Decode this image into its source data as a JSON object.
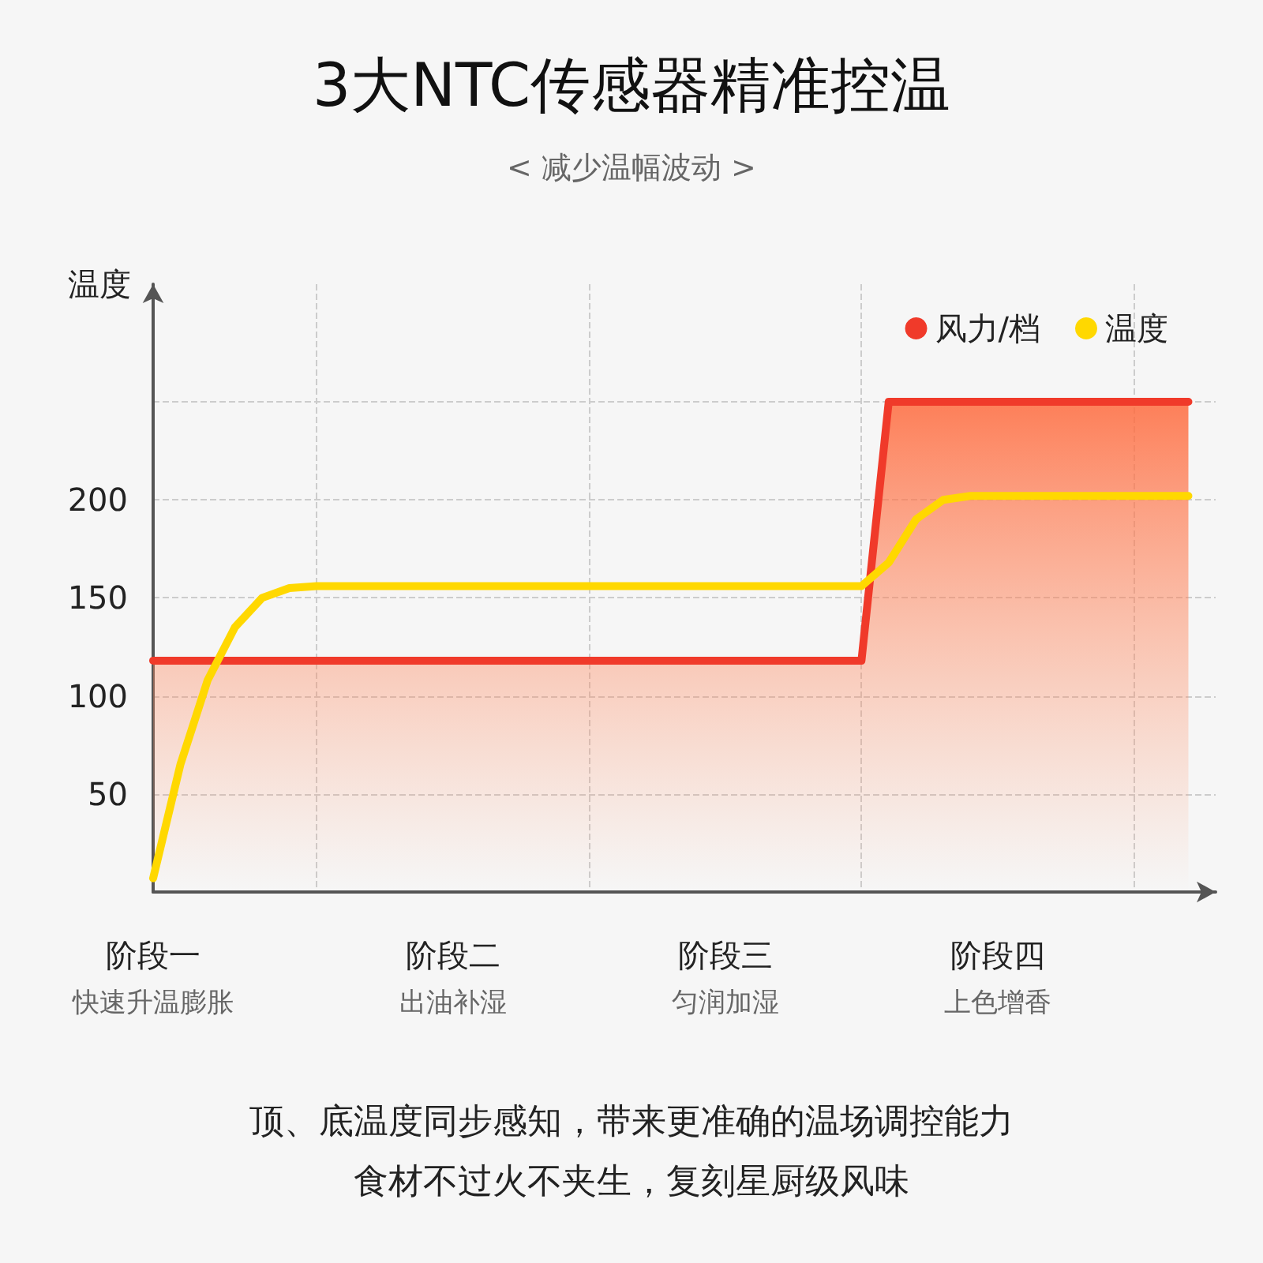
{
  "chart_data": {
    "type": "line",
    "title": "3大NTC传感器精准控温",
    "subtitle": "< 减少温幅波动 >",
    "ylabel": "温度",
    "annotations": [
      "快速升温膨胀",
      "出油补湿",
      "匀润加湿",
      "上色增香",
      "顶、底温度同步感知，带来更准确的温场调控能力",
      "食材不过火不夹生，复刻星厨级风味"
    ],
    "categories": [
      "阶段一",
      null,
      null,
      null,
      null,
      null,
      null,
      null,
      null,
      null,
      null,
      "阶段二",
      null,
      null,
      null,
      null,
      null,
      null,
      null,
      null,
      null,
      "阶段三",
      null,
      null,
      null,
      null,
      null,
      null,
      null,
      null,
      null,
      "阶段四",
      null,
      null,
      null,
      null,
      null,
      null,
      null,
      null
    ],
    "ylim": [
      0,
      310
    ],
    "yticks": [
      50,
      100,
      150,
      200,
      {
        "value": 250,
        "label": null
      }
    ],
    "grid": true,
    "legend": "top right",
    "marker": "none",
    "line_style": "solid",
    "series": [
      {
        "name": "风力/档",
        "type": "area",
        "color": "#f03a2a",
        "values": [
          118,
          118,
          118,
          118,
          118,
          118,
          118,
          118,
          118,
          118,
          118,
          118,
          118,
          118,
          118,
          118,
          118,
          118,
          118,
          118,
          118,
          118,
          118,
          118,
          118,
          118,
          118,
          250,
          250,
          250,
          250,
          250,
          250,
          250,
          250,
          250,
          250,
          250,
          250,
          null
        ]
      },
      {
        "name": "温度",
        "color": "#ffd800",
        "values": [
          7,
          65,
          108,
          135,
          150,
          155,
          156,
          156,
          156,
          156,
          156,
          156,
          156,
          156,
          156,
          156,
          156,
          156,
          156,
          156,
          156,
          156,
          156,
          156,
          156,
          156,
          156,
          168,
          190,
          200,
          202,
          202,
          202,
          202,
          202,
          202,
          202,
          202,
          202,
          null
        ]
      }
    ]
  }
}
